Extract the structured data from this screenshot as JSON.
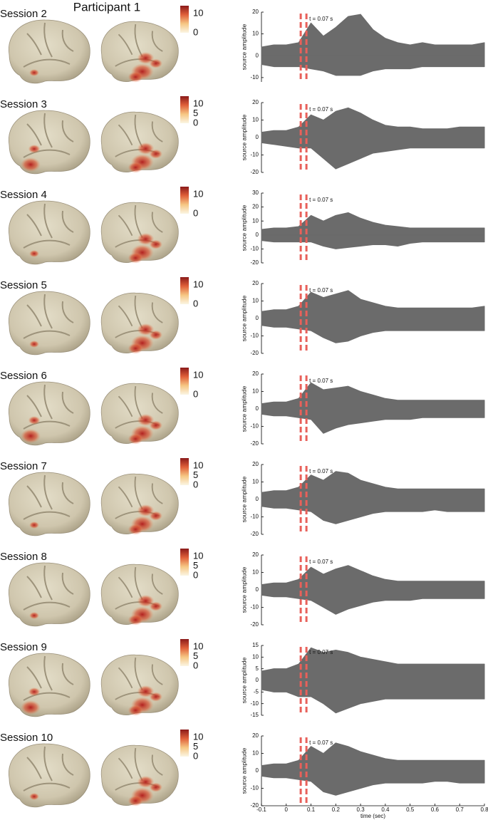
{
  "title": "Participant 1",
  "chart_data": [
    {
      "type": "line",
      "title": "Session 2",
      "ylabel": "source amplitude",
      "annotation": "t = 0.07 s",
      "marker_x": 0.07,
      "xlim": [
        -0.1,
        0.8
      ],
      "ylim": [
        -12,
        20
      ],
      "yticks": [
        -10,
        0,
        10,
        20
      ],
      "colorbar": {
        "lim": [
          0,
          14
        ],
        "ticks": [
          0,
          10
        ],
        "colors": [
          "#fbf6e4",
          "#f6c784",
          "#e0603a",
          "#8b1a1a"
        ]
      },
      "x": [
        -0.1,
        -0.05,
        0,
        0.05,
        0.1,
        0.15,
        0.2,
        0.25,
        0.3,
        0.35,
        0.4,
        0.45,
        0.5,
        0.55,
        0.6,
        0.65,
        0.7,
        0.75,
        0.8
      ],
      "series": [
        {
          "color": "#6b6b6b",
          "values": [
            4,
            5,
            5,
            6,
            15,
            9,
            13,
            18,
            19,
            12,
            8,
            6,
            5,
            6,
            5,
            5,
            5,
            5,
            6
          ]
        },
        {
          "color": "#6b6b6b",
          "values": [
            -4,
            -5,
            -5,
            -5,
            -6,
            -7,
            -9,
            -9,
            -9,
            -7,
            -6,
            -6,
            -6,
            -5,
            -5,
            -5,
            -5,
            -5,
            -5
          ]
        }
      ]
    },
    {
      "type": "line",
      "title": "Session 3",
      "ylabel": "source amplitude",
      "annotation": "t = 0.07 s",
      "marker_x": 0.07,
      "xlim": [
        -0.1,
        0.8
      ],
      "ylim": [
        -20,
        20
      ],
      "yticks": [
        -20,
        -10,
        0,
        10,
        20
      ],
      "colorbar": {
        "lim": [
          0,
          14
        ],
        "ticks": [
          0,
          5,
          10
        ],
        "colors": [
          "#fbf6e4",
          "#f6c784",
          "#e0603a",
          "#8b1a1a"
        ]
      },
      "x": [
        -0.1,
        -0.05,
        0,
        0.05,
        0.1,
        0.15,
        0.2,
        0.25,
        0.3,
        0.35,
        0.4,
        0.45,
        0.5,
        0.55,
        0.6,
        0.65,
        0.7,
        0.75,
        0.8
      ],
      "series": [
        {
          "color": "#6b6b6b",
          "values": [
            3,
            4,
            4,
            6,
            13,
            10,
            15,
            17,
            14,
            10,
            7,
            6,
            6,
            5,
            5,
            5,
            6,
            6,
            6
          ]
        },
        {
          "color": "#6b6b6b",
          "values": [
            -3,
            -4,
            -5,
            -6,
            -6,
            -12,
            -18,
            -15,
            -12,
            -9,
            -8,
            -7,
            -6,
            -6,
            -6,
            -6,
            -6,
            -6,
            -6
          ]
        }
      ]
    },
    {
      "type": "line",
      "title": "Session 4",
      "ylabel": "source amplitude",
      "annotation": "t = 0.07 s",
      "marker_x": 0.07,
      "xlim": [
        -0.1,
        0.8
      ],
      "ylim": [
        -20,
        30
      ],
      "yticks": [
        -20,
        -10,
        0,
        10,
        20,
        30
      ],
      "colorbar": {
        "lim": [
          0,
          14
        ],
        "ticks": [
          0,
          10
        ],
        "colors": [
          "#fbf6e4",
          "#f6c784",
          "#e0603a",
          "#8b1a1a"
        ]
      },
      "x": [
        -0.1,
        -0.05,
        0,
        0.05,
        0.1,
        0.15,
        0.2,
        0.25,
        0.3,
        0.35,
        0.4,
        0.45,
        0.5,
        0.55,
        0.6,
        0.65,
        0.7,
        0.75,
        0.8
      ],
      "series": [
        {
          "color": "#6b6b6b",
          "values": [
            4,
            5,
            5,
            6,
            14,
            10,
            14,
            16,
            12,
            9,
            7,
            6,
            5,
            5,
            5,
            5,
            5,
            5,
            5
          ]
        },
        {
          "color": "#6b6b6b",
          "values": [
            -4,
            -5,
            -5,
            -5,
            -5,
            -8,
            -10,
            -9,
            -8,
            -7,
            -7,
            -8,
            -6,
            -5,
            -5,
            -5,
            -5,
            -5,
            -5
          ]
        }
      ]
    },
    {
      "type": "line",
      "title": "Session 5",
      "ylabel": "source amplitude",
      "annotation": "t = 0.07 s",
      "marker_x": 0.07,
      "xlim": [
        -0.1,
        0.8
      ],
      "ylim": [
        -20,
        20
      ],
      "yticks": [
        -20,
        -10,
        0,
        10,
        20
      ],
      "colorbar": {
        "lim": [
          0,
          14
        ],
        "ticks": [
          0,
          10
        ],
        "colors": [
          "#fbf6e4",
          "#f6c784",
          "#e0603a",
          "#8b1a1a"
        ]
      },
      "x": [
        -0.1,
        -0.05,
        0,
        0.05,
        0.1,
        0.15,
        0.2,
        0.25,
        0.3,
        0.35,
        0.4,
        0.45,
        0.5,
        0.55,
        0.6,
        0.65,
        0.7,
        0.75,
        0.8
      ],
      "series": [
        {
          "color": "#6b6b6b",
          "values": [
            4,
            5,
            5,
            7,
            15,
            12,
            14,
            16,
            11,
            9,
            7,
            6,
            6,
            6,
            6,
            6,
            6,
            6,
            7
          ]
        },
        {
          "color": "#6b6b6b",
          "values": [
            -4,
            -5,
            -5,
            -6,
            -7,
            -11,
            -14,
            -13,
            -10,
            -8,
            -7,
            -7,
            -7,
            -7,
            -7,
            -7,
            -7,
            -7,
            -7
          ]
        }
      ]
    },
    {
      "type": "line",
      "title": "Session 6",
      "ylabel": "source amplitude",
      "annotation": "t = 0.07 s",
      "marker_x": 0.07,
      "xlim": [
        -0.1,
        0.8
      ],
      "ylim": [
        -20,
        20
      ],
      "yticks": [
        -20,
        -10,
        0,
        10,
        20
      ],
      "colorbar": {
        "lim": [
          0,
          14
        ],
        "ticks": [
          0,
          10
        ],
        "colors": [
          "#fbf6e4",
          "#f6c784",
          "#e0603a",
          "#8b1a1a"
        ]
      },
      "x": [
        -0.1,
        -0.05,
        0,
        0.05,
        0.1,
        0.15,
        0.2,
        0.25,
        0.3,
        0.35,
        0.4,
        0.45,
        0.5,
        0.55,
        0.6,
        0.65,
        0.7,
        0.75,
        0.8
      ],
      "series": [
        {
          "color": "#6b6b6b",
          "values": [
            3,
            4,
            4,
            6,
            15,
            11,
            12,
            13,
            10,
            8,
            6,
            5,
            5,
            5,
            5,
            5,
            5,
            5,
            5
          ]
        },
        {
          "color": "#6b6b6b",
          "values": [
            -3,
            -4,
            -4,
            -5,
            -6,
            -14,
            -11,
            -9,
            -8,
            -7,
            -6,
            -6,
            -6,
            -5,
            -5,
            -5,
            -5,
            -5,
            -5
          ]
        }
      ]
    },
    {
      "type": "line",
      "title": "Session 7",
      "ylabel": "source amplitude",
      "annotation": "t = 0.07 s",
      "marker_x": 0.07,
      "xlim": [
        -0.1,
        0.8
      ],
      "ylim": [
        -20,
        20
      ],
      "yticks": [
        -20,
        -10,
        0,
        10,
        20
      ],
      "colorbar": {
        "lim": [
          0,
          14
        ],
        "ticks": [
          0,
          5,
          10
        ],
        "colors": [
          "#fbf6e4",
          "#f6c784",
          "#e0603a",
          "#8b1a1a"
        ]
      },
      "x": [
        -0.1,
        -0.05,
        0,
        0.05,
        0.1,
        0.15,
        0.2,
        0.25,
        0.3,
        0.35,
        0.4,
        0.45,
        0.5,
        0.55,
        0.6,
        0.65,
        0.7,
        0.75,
        0.8
      ],
      "series": [
        {
          "color": "#6b6b6b",
          "values": [
            4,
            5,
            5,
            7,
            14,
            11,
            16,
            15,
            11,
            9,
            7,
            6,
            6,
            6,
            6,
            6,
            6,
            6,
            6
          ]
        },
        {
          "color": "#6b6b6b",
          "values": [
            -4,
            -5,
            -5,
            -6,
            -7,
            -12,
            -14,
            -12,
            -10,
            -8,
            -7,
            -7,
            -7,
            -7,
            -6,
            -7,
            -7,
            -7,
            -7
          ]
        }
      ]
    },
    {
      "type": "line",
      "title": "Session 8",
      "ylabel": "source amplitude",
      "annotation": "t = 0.07 s",
      "marker_x": 0.07,
      "xlim": [
        -0.1,
        0.8
      ],
      "ylim": [
        -20,
        20
      ],
      "yticks": [
        -20,
        -10,
        0,
        10,
        20
      ],
      "colorbar": {
        "lim": [
          0,
          14
        ],
        "ticks": [
          0,
          5,
          10
        ],
        "colors": [
          "#fbf6e4",
          "#f6c784",
          "#e0603a",
          "#8b1a1a"
        ]
      },
      "x": [
        -0.1,
        -0.05,
        0,
        0.05,
        0.1,
        0.15,
        0.2,
        0.25,
        0.3,
        0.35,
        0.4,
        0.45,
        0.5,
        0.55,
        0.6,
        0.65,
        0.7,
        0.75,
        0.8
      ],
      "series": [
        {
          "color": "#6b6b6b",
          "values": [
            3,
            4,
            4,
            6,
            13,
            9,
            12,
            14,
            11,
            8,
            6,
            5,
            5,
            5,
            5,
            5,
            5,
            5,
            5
          ]
        },
        {
          "color": "#6b6b6b",
          "values": [
            -3,
            -4,
            -4,
            -5,
            -6,
            -10,
            -14,
            -11,
            -9,
            -7,
            -6,
            -6,
            -6,
            -5,
            -5,
            -5,
            -5,
            -5,
            -5
          ]
        }
      ]
    },
    {
      "type": "line",
      "title": "Session 9",
      "ylabel": "source amplitude",
      "annotation": "t = 0.07 s",
      "marker_x": 0.07,
      "xlim": [
        -0.1,
        0.8
      ],
      "ylim": [
        -15,
        15
      ],
      "yticks": [
        -15,
        -10,
        -5,
        0,
        5,
        10,
        15
      ],
      "colorbar": {
        "lim": [
          0,
          14
        ],
        "ticks": [
          0,
          5,
          10
        ],
        "colors": [
          "#fbf6e4",
          "#f6c784",
          "#e0603a",
          "#8b1a1a"
        ]
      },
      "x": [
        -0.1,
        -0.05,
        0,
        0.05,
        0.1,
        0.15,
        0.2,
        0.25,
        0.3,
        0.35,
        0.4,
        0.45,
        0.5,
        0.55,
        0.6,
        0.65,
        0.7,
        0.75,
        0.8
      ],
      "series": [
        {
          "color": "#6b6b6b",
          "values": [
            4,
            5,
            5,
            7,
            14,
            12,
            13,
            12,
            10,
            9,
            8,
            7,
            7,
            7,
            7,
            7,
            7,
            7,
            7
          ]
        },
        {
          "color": "#6b6b6b",
          "values": [
            -4,
            -5,
            -5,
            -7,
            -7,
            -10,
            -14,
            -12,
            -10,
            -9,
            -8,
            -8,
            -8,
            -8,
            -8,
            -8,
            -8,
            -8,
            -8
          ]
        }
      ]
    },
    {
      "type": "line",
      "title": "Session 10",
      "ylabel": "source amplitude",
      "annotation": "t = 0.07 s",
      "marker_x": 0.07,
      "xlim": [
        -0.1,
        0.8
      ],
      "ylim": [
        -20,
        20
      ],
      "yticks": [
        -20,
        -10,
        0,
        10,
        20
      ],
      "xticks": [
        -0.1,
        0,
        0.1,
        0.2,
        0.3,
        0.4,
        0.5,
        0.6,
        0.7,
        0.8
      ],
      "xlabel": "time (sec)",
      "colorbar": {
        "lim": [
          0,
          14
        ],
        "ticks": [
          0,
          5,
          10
        ],
        "colors": [
          "#fbf6e4",
          "#f6c784",
          "#e0603a",
          "#8b1a1a"
        ]
      },
      "x": [
        -0.1,
        -0.05,
        0,
        0.05,
        0.1,
        0.15,
        0.2,
        0.25,
        0.3,
        0.35,
        0.4,
        0.45,
        0.5,
        0.55,
        0.6,
        0.65,
        0.7,
        0.75,
        0.8
      ],
      "series": [
        {
          "color": "#6b6b6b",
          "values": [
            3,
            4,
            4,
            6,
            14,
            10,
            16,
            14,
            11,
            9,
            7,
            6,
            6,
            6,
            6,
            6,
            6,
            6,
            6
          ]
        },
        {
          "color": "#6b6b6b",
          "values": [
            -3,
            -4,
            -4,
            -5,
            -6,
            -12,
            -14,
            -12,
            -10,
            -8,
            -7,
            -7,
            -7,
            -7,
            -6,
            -6,
            -7,
            -7,
            -7
          ]
        }
      ]
    }
  ]
}
